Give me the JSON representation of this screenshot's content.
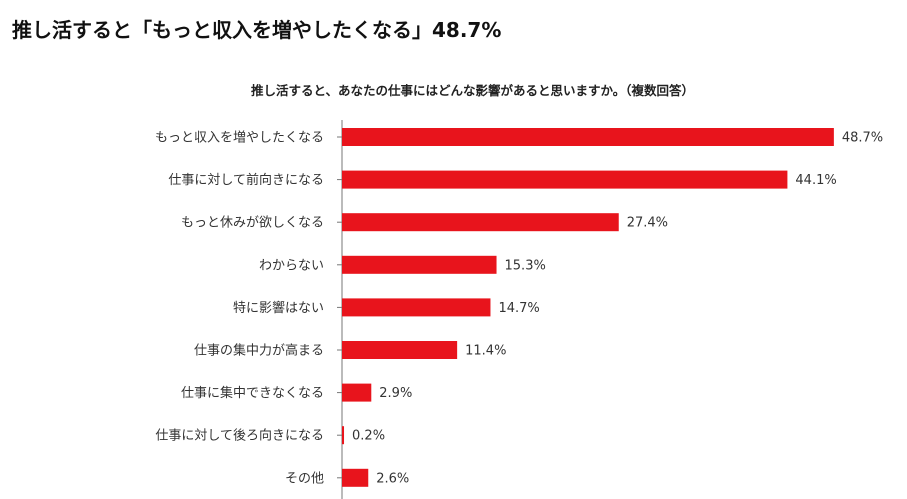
{
  "headline": "推し活すると「もっと収入を増やしたくなる」48.7%",
  "chart_data": {
    "type": "bar",
    "orientation": "horizontal",
    "title": "推し活すると、あなたの仕事にはどんな影響があると思いますか。（複数回答）",
    "categories": [
      "もっと収入を増やしたくなる",
      "仕事に対して前向きになる",
      "もっと休みが欲しくなる",
      "わからない",
      "特に影響はない",
      "仕事の集中力が高まる",
      "仕事に集中できなくなる",
      "仕事に対して後ろ向きになる",
      "その他"
    ],
    "values": [
      48.7,
      44.1,
      27.4,
      15.3,
      14.7,
      11.4,
      2.9,
      0.2,
      2.6
    ],
    "value_labels": [
      "48.7%",
      "44.1%",
      "27.4%",
      "15.3%",
      "14.7%",
      "11.4%",
      "2.9%",
      "0.2%",
      "2.6%"
    ],
    "bar_color": "#e8141c",
    "grid": false
  }
}
